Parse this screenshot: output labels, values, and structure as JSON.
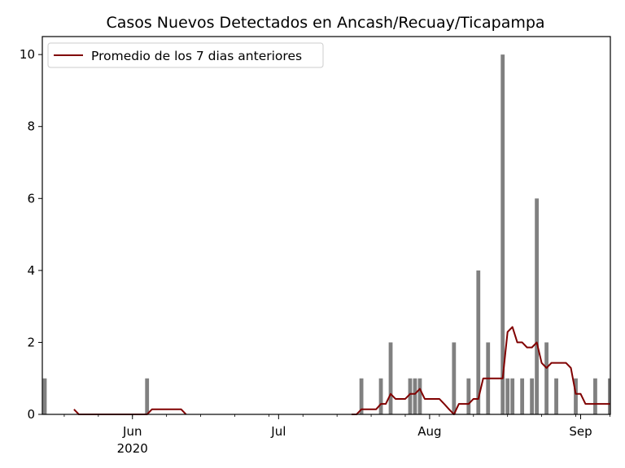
{
  "chart_data": {
    "type": "bar",
    "title": "Casos Nuevos Detectados en Ancash/Recuay/Ticapampa",
    "xlabel": "",
    "ylabel": "",
    "x_range": [
      "2020-05-14",
      "2020-09-07"
    ],
    "ylim": [
      0,
      10.5
    ],
    "y_ticks": [
      0,
      2,
      4,
      6,
      8,
      10
    ],
    "x_ticks": [
      {
        "date": "2020-06-01",
        "label": "Jun",
        "sublabel": "2020"
      },
      {
        "date": "2020-07-01",
        "label": "Jul",
        "sublabel": ""
      },
      {
        "date": "2020-08-01",
        "label": "Aug",
        "sublabel": ""
      },
      {
        "date": "2020-09-01",
        "label": "Sep",
        "sublabel": ""
      }
    ],
    "grid": false,
    "legend_position": "upper-left",
    "bars": {
      "color": "#808080",
      "points": [
        {
          "date": "2020-05-14",
          "value": 1
        },
        {
          "date": "2020-06-04",
          "value": 1
        },
        {
          "date": "2020-07-18",
          "value": 1
        },
        {
          "date": "2020-07-22",
          "value": 1
        },
        {
          "date": "2020-07-24",
          "value": 2
        },
        {
          "date": "2020-07-28",
          "value": 1
        },
        {
          "date": "2020-07-29",
          "value": 1
        },
        {
          "date": "2020-07-30",
          "value": 1
        },
        {
          "date": "2020-08-06",
          "value": 2
        },
        {
          "date": "2020-08-09",
          "value": 1
        },
        {
          "date": "2020-08-11",
          "value": 4
        },
        {
          "date": "2020-08-13",
          "value": 2
        },
        {
          "date": "2020-08-16",
          "value": 10
        },
        {
          "date": "2020-08-17",
          "value": 1
        },
        {
          "date": "2020-08-18",
          "value": 1
        },
        {
          "date": "2020-08-20",
          "value": 1
        },
        {
          "date": "2020-08-22",
          "value": 1
        },
        {
          "date": "2020-08-23",
          "value": 6
        },
        {
          "date": "2020-08-25",
          "value": 2
        },
        {
          "date": "2020-08-27",
          "value": 1
        },
        {
          "date": "2020-08-31",
          "value": 1
        },
        {
          "date": "2020-09-04",
          "value": 1
        },
        {
          "date": "2020-09-07",
          "value": 1
        }
      ]
    },
    "series": [
      {
        "name": "Promedio de los 7 dias anteriores",
        "color": "#800000",
        "x": [
          "2020-05-20",
          "2020-05-21",
          "2020-05-22",
          "2020-05-23",
          "2020-05-24",
          "2020-05-25",
          "2020-05-26",
          "2020-05-27",
          "2020-05-28",
          "2020-05-29",
          "2020-05-30",
          "2020-05-31",
          "2020-06-01",
          "2020-06-02",
          "2020-06-03",
          "2020-06-04",
          "2020-06-05",
          "2020-06-06",
          "2020-06-07",
          "2020-06-08",
          "2020-06-09",
          "2020-06-10",
          "2020-06-11",
          "2020-06-12",
          "2020-07-16",
          "2020-07-17",
          "2020-07-18",
          "2020-07-19",
          "2020-07-20",
          "2020-07-21",
          "2020-07-22",
          "2020-07-23",
          "2020-07-24",
          "2020-07-25",
          "2020-07-26",
          "2020-07-27",
          "2020-07-28",
          "2020-07-29",
          "2020-07-30",
          "2020-07-31",
          "2020-08-01",
          "2020-08-02",
          "2020-08-03",
          "2020-08-04",
          "2020-08-05",
          "2020-08-06",
          "2020-08-07",
          "2020-08-08",
          "2020-08-09",
          "2020-08-10",
          "2020-08-11",
          "2020-08-12",
          "2020-08-13",
          "2020-08-14",
          "2020-08-15",
          "2020-08-16",
          "2020-08-17",
          "2020-08-18",
          "2020-08-19",
          "2020-08-20",
          "2020-08-21",
          "2020-08-22",
          "2020-08-23",
          "2020-08-24",
          "2020-08-25",
          "2020-08-26",
          "2020-08-27",
          "2020-08-28",
          "2020-08-29",
          "2020-08-30",
          "2020-08-31",
          "2020-09-01",
          "2020-09-02",
          "2020-09-03",
          "2020-09-04",
          "2020-09-05",
          "2020-09-06",
          "2020-09-07"
        ],
        "values": [
          0.14,
          0,
          0,
          0,
          0,
          0,
          0,
          0,
          0,
          0,
          0,
          0,
          0,
          0,
          0,
          0,
          0.14,
          0.14,
          0.14,
          0.14,
          0.14,
          0.14,
          0.14,
          0,
          0,
          0,
          0.14,
          0.14,
          0.14,
          0.14,
          0.29,
          0.29,
          0.57,
          0.43,
          0.43,
          0.43,
          0.57,
          0.57,
          0.71,
          0.43,
          0.43,
          0.43,
          0.43,
          0.29,
          0.14,
          0,
          0.29,
          0.29,
          0.29,
          0.43,
          0.43,
          1,
          1,
          1,
          1,
          1,
          2.29,
          2.43,
          2,
          2,
          1.86,
          1.86,
          2,
          1.43,
          1.29,
          1.43,
          1.43,
          1.43,
          1.43,
          1.29,
          0.57,
          0.57,
          0.29,
          0.29,
          0.29,
          0.29,
          0.29,
          0.29
        ]
      }
    ]
  }
}
